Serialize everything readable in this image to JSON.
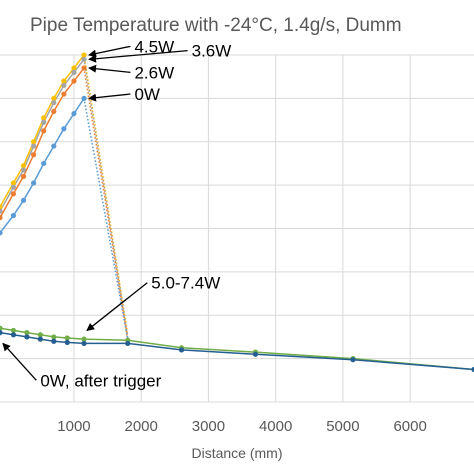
{
  "chart_data": {
    "type": "line",
    "title": "Pipe Temperature with -24°C, 1.4g/s, Dumm",
    "xlabel": "Distance (mm)",
    "ylabel": "",
    "xlim": [
      -100,
      6950
    ],
    "ylim": [
      0,
      160
    ],
    "x_ticks": [
      1000,
      2000,
      3000,
      4000,
      5000,
      6000
    ],
    "x_tick_labels": [
      "1000",
      "2000",
      "3000",
      "4000",
      "5000",
      "6000"
    ],
    "grid": true,
    "colors": {
      "w45": "#ffc000",
      "w36": "#a5a5a5",
      "w26": "#ed7d31",
      "w0": "#5b9bd5",
      "w50_74": "#70ad47",
      "w0_trigger": "#255e91"
    },
    "series": [
      {
        "key": "w45",
        "dotted": false,
        "x": [
          -100,
          100,
          250,
          400,
          550,
          700,
          850,
          1000,
          1150
        ],
        "y": [
          90,
          101,
          109,
          120,
          131,
          140,
          148,
          154,
          160
        ]
      },
      {
        "key": "w36",
        "dotted": false,
        "x": [
          -100,
          100,
          250,
          400,
          550,
          700,
          850,
          1000,
          1150
        ],
        "y": [
          88,
          99,
          107,
          118,
          129,
          138,
          146,
          152,
          158
        ]
      },
      {
        "key": "w26",
        "dotted": false,
        "x": [
          -100,
          100,
          250,
          400,
          550,
          700,
          850,
          1000,
          1150
        ],
        "y": [
          85,
          96,
          104,
          114,
          125,
          134,
          142,
          148,
          154
        ]
      },
      {
        "key": "w0",
        "dotted": false,
        "x": [
          -100,
          100,
          250,
          400,
          550,
          700,
          850,
          1000,
          1150
        ],
        "y": [
          78,
          86,
          93,
          101,
          110,
          118,
          126,
          133,
          140
        ]
      },
      {
        "key": "w45",
        "dotted": true,
        "x": [
          1150,
          1800
        ],
        "y": [
          160,
          31
        ]
      },
      {
        "key": "w36",
        "dotted": true,
        "x": [
          1150,
          1800
        ],
        "y": [
          158,
          30
        ]
      },
      {
        "key": "w26",
        "dotted": true,
        "x": [
          1150,
          1800
        ],
        "y": [
          154,
          29
        ]
      },
      {
        "key": "w0",
        "dotted": true,
        "x": [
          1150,
          1800
        ],
        "y": [
          140,
          29
        ]
      },
      {
        "key": "w50_74",
        "dotted": false,
        "x": [
          -100,
          100,
          300,
          500,
          700,
          900,
          1150,
          1800,
          2600,
          3700,
          5150,
          6950
        ],
        "y": [
          34,
          33,
          32,
          31,
          30,
          29.5,
          29,
          28.5,
          25,
          23,
          20,
          15
        ]
      },
      {
        "key": "w0_trigger",
        "dotted": false,
        "x": [
          -100,
          100,
          300,
          500,
          700,
          900,
          1150,
          1800,
          2600,
          3700,
          5150,
          6950
        ],
        "y": [
          32,
          31,
          30,
          29,
          28,
          27.5,
          27,
          27,
          24,
          22,
          19.5,
          15
        ]
      }
    ],
    "annotations": [
      {
        "text": "4.5W",
        "x": 1180,
        "y": 160,
        "lx": 1900,
        "ly": 164
      },
      {
        "text": "3.6W",
        "x": 1180,
        "y": 158,
        "lx": 2750,
        "ly": 162
      },
      {
        "text": "2.6W",
        "x": 1180,
        "y": 154,
        "lx": 1900,
        "ly": 152
      },
      {
        "text": "0W",
        "x": 1180,
        "y": 140,
        "lx": 1900,
        "ly": 142
      },
      {
        "text": "5.0-7.4W",
        "x": 1150,
        "y": 33,
        "lx": 2150,
        "ly": 55
      },
      {
        "text": "0W, after trigger",
        "x": -100,
        "y": 27,
        "lx": 500,
        "ly": 10
      }
    ]
  }
}
